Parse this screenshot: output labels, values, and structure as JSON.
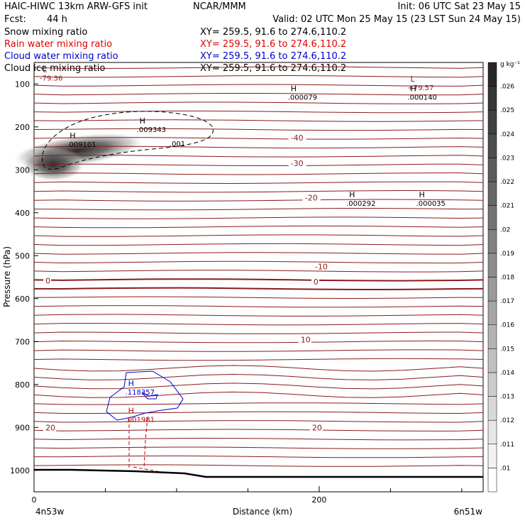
{
  "header": {
    "title_left": "HAIC-HIWC 13km ARW-GFS init",
    "org": "NCAR/MMM",
    "init": "Init: 06 UTC Sat 23 May 15",
    "fcst_label": "Fcst:",
    "fcst_value": "44 h",
    "valid": "Valid: 02 UTC Mon 25 May 15 (23 LST Sun 24 May 15)",
    "fields": [
      {
        "name": "Snow mixing ratio",
        "xy": "XY= 259.5, 91.6 to 274.6,110.2",
        "color": "#000000"
      },
      {
        "name": "Rain water mixing ratio",
        "xy": "XY= 259.5, 91.6 to 274.6,110.2",
        "color": "#e00000"
      },
      {
        "name": "Cloud water mixing ratio",
        "xy": "XY= 259.5, 91.6 to 274.6,110.2",
        "color": "#0000d0"
      },
      {
        "name": "Cloud ice mixing ratio",
        "xy": "XY= 259.5, 91.6 to 274.6,110.2",
        "color": "#000000"
      }
    ]
  },
  "colors": {
    "temperature_contour": "#8b1a1a",
    "rain": "#c00000",
    "cloud_water": "#0000d0",
    "snow_fill": "#404040",
    "ground": "#000000"
  },
  "chart_data": {
    "type": "heatmap",
    "xlabel": "Distance (km)",
    "ylabel": "Pressure (hPa)",
    "xlim": [
      0,
      315
    ],
    "ylim": [
      1050,
      50
    ],
    "x_ticks": [
      0,
      200
    ],
    "y_ticks": [
      100,
      200,
      300,
      400,
      500,
      600,
      700,
      800,
      900,
      1000
    ],
    "x_minor_ticks": [
      50,
      100,
      150,
      250,
      300
    ],
    "x_end_labels": {
      "left": "4n53w",
      "right": "6n51w"
    },
    "colorbar": {
      "units": "g kg⁻¹",
      "levels": [
        ".01",
        ".011",
        ".012",
        ".013",
        ".014",
        ".015",
        ".016",
        ".017",
        ".018",
        ".019",
        ".02",
        ".021",
        ".022",
        ".023",
        ".024",
        ".025",
        ".026"
      ]
    },
    "temperature_contours": [
      {
        "label": "-40",
        "x": 180,
        "p": 230
      },
      {
        "label": "-30",
        "x": 180,
        "p": 290
      },
      {
        "label": "-20",
        "x": 190,
        "p": 370
      },
      {
        "label": "-10",
        "x": 197,
        "p": 530
      },
      {
        "label": "0",
        "x": 8,
        "p": 563
      },
      {
        "label": "0",
        "x": 196,
        "p": 566
      },
      {
        "label": "10",
        "x": 187,
        "p": 700
      },
      {
        "label": "20",
        "x": 8,
        "p": 905
      },
      {
        "label": "20",
        "x": 195,
        "p": 905
      }
    ],
    "snow_field": {
      "peak_value": ".009101",
      "center_x": 35,
      "center_p": 255
    },
    "extrema": [
      {
        "type": "L",
        "value": "-79.36",
        "x": 4,
        "p": 72,
        "field": "temperature"
      },
      {
        "type": "L",
        "value": "+79.57",
        "x": 262,
        "p": 95,
        "field": "temperature"
      },
      {
        "type": "H",
        "value": ".000140",
        "x": 262,
        "p": 117,
        "field": "cloud ice"
      },
      {
        "type": "H",
        "value": ".000079",
        "x": 178,
        "p": 117,
        "field": "cloud ice"
      },
      {
        "type": "H",
        "value": ".009343",
        "x": 72,
        "p": 192,
        "field": "cloud ice"
      },
      {
        "type": "H",
        "value": ".009101",
        "x": 23,
        "p": 227,
        "field": "snow"
      },
      {
        "type": "H",
        "value": ".000292",
        "x": 219,
        "p": 364,
        "field": "cloud ice"
      },
      {
        "type": "H",
        "value": ".000035",
        "x": 268,
        "p": 364,
        "field": "cloud ice"
      },
      {
        "type": "H",
        "value": ".118357",
        "x": 64,
        "p": 804,
        "field": "cloud water"
      },
      {
        "type": "H",
        "value": ".001981",
        "x": 64,
        "p": 867,
        "field": "rain"
      }
    ],
    "contour_labels": [
      {
        "label": ".001",
        "x": 95,
        "p": 245,
        "field": "cloud ice"
      }
    ]
  }
}
